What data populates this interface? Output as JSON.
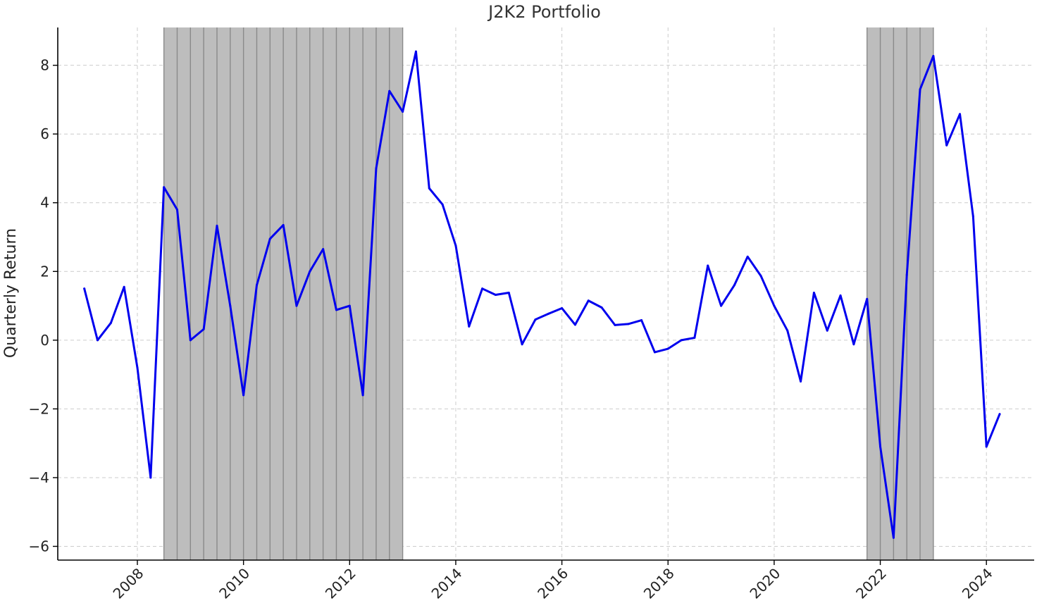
{
  "chart_data": {
    "type": "line",
    "title": "J2K2 Portfolio",
    "xlabel": "",
    "ylabel": "Quarterly Return",
    "xlim": [
      2006.5,
      2024.9
    ],
    "ylim": [
      -6.4,
      9.1
    ],
    "x_ticks": [
      2008,
      2010,
      2012,
      2014,
      2016,
      2018,
      2020,
      2022,
      2024
    ],
    "x_tick_labels": [
      "2008",
      "2010",
      "2012",
      "2014",
      "2016",
      "2018",
      "2020",
      "2022",
      "2024"
    ],
    "y_ticks": [
      -6,
      -4,
      -2,
      0,
      2,
      4,
      6,
      8
    ],
    "y_tick_labels": [
      "−6",
      "−4",
      "−2",
      "0",
      "2",
      "4",
      "6",
      "8"
    ],
    "grid": true,
    "colors": {
      "series": "#0000ee",
      "shaded": "#bdbdbd",
      "shaded_divider": "#8a8a8a"
    },
    "shaded_regions": [
      {
        "start": 2008.5,
        "end": 2013.0
      },
      {
        "start": 2021.75,
        "end": 2023.0
      }
    ],
    "series": [
      {
        "x": [
          2007.0,
          2007.25,
          2007.5,
          2007.75,
          2008.0,
          2008.25,
          2008.5,
          2008.75,
          2009.0,
          2009.25,
          2009.5,
          2009.75,
          2010.0,
          2010.25,
          2010.5,
          2010.75,
          2011.0,
          2011.25,
          2011.5,
          2011.75,
          2012.0,
          2012.25,
          2012.5,
          2012.75,
          2013.0,
          2013.25,
          2013.5,
          2013.75,
          2014.0,
          2014.25,
          2014.5,
          2014.75,
          2015.0,
          2015.25,
          2015.5,
          2015.75,
          2016.0,
          2016.25,
          2016.5,
          2016.75,
          2017.0,
          2017.25,
          2017.5,
          2017.75,
          2018.0,
          2018.25,
          2018.5,
          2018.75,
          2019.0,
          2019.25,
          2019.5,
          2019.75,
          2020.0,
          2020.25,
          2020.5,
          2020.75,
          2021.0,
          2021.25,
          2021.5,
          2021.75,
          2022.0,
          2022.25,
          2022.5,
          2022.75,
          2023.0,
          2023.25,
          2023.5,
          2023.75,
          2024.0,
          2024.25
        ],
        "values": [
          1.5,
          0.0,
          0.5,
          1.55,
          -0.8,
          -4.0,
          4.45,
          3.8,
          0.0,
          0.32,
          3.33,
          1.0,
          -1.6,
          1.6,
          2.95,
          3.35,
          1.0,
          2.0,
          2.65,
          0.88,
          1.0,
          -1.6,
          5.0,
          7.25,
          6.65,
          8.4,
          4.42,
          3.95,
          2.75,
          0.4,
          1.5,
          1.32,
          1.38,
          -0.12,
          0.6,
          0.77,
          0.93,
          0.45,
          1.15,
          0.95,
          0.44,
          0.47,
          0.58,
          -0.35,
          -0.25,
          0.0,
          0.07,
          2.17,
          1.0,
          1.6,
          2.43,
          1.87,
          1.0,
          0.28,
          -1.2,
          1.38,
          0.28,
          1.3,
          -0.12,
          1.2,
          -3.1,
          -5.75,
          1.9,
          7.3,
          8.27,
          5.67,
          6.58,
          3.6,
          -3.1,
          -2.15
        ]
      }
    ]
  }
}
